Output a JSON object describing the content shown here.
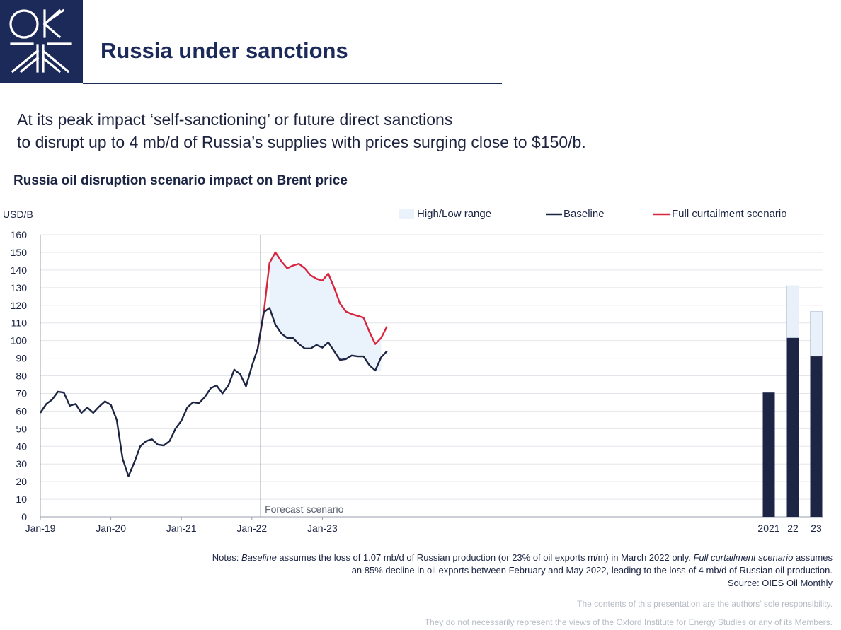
{
  "header": {
    "title": "Russia under sanctions",
    "logo_icon": "oies-logo-icon",
    "brand_color": "#1c2a5a"
  },
  "subtitle": {
    "line1": "At its peak impact ‘self-sanctioning’ or future direct sanctions",
    "line2": "to disrupt up to 4 mb/d of Russia’s supplies with prices surging close to $150/b."
  },
  "chart_data": {
    "type": "line",
    "title": "Russia oil disruption scenario impact on Brent price",
    "ylabel": "USD/B",
    "ylim": [
      0,
      160
    ],
    "yticks": [
      0,
      10,
      20,
      30,
      40,
      50,
      60,
      70,
      80,
      90,
      100,
      110,
      120,
      130,
      140,
      150,
      160
    ],
    "x_start": "Jan-19",
    "x_end": "Dec-23",
    "xticks": [
      "Jan-19",
      "Jan-20",
      "Jan-21",
      "Jan-22",
      "Jan-23"
    ],
    "grid": true,
    "legend_position": "top-right",
    "legend": [
      "High/Low range",
      "Baseline",
      "Full curtailment scenario"
    ],
    "colors": {
      "baseline": "#1c2544",
      "curtailment": "#d7263d",
      "range": "#eaf2fb",
      "annual_range": "#e8f1fa"
    },
    "annotation": "Forecast scenario",
    "annotation_at": "Feb-22",
    "series": [
      {
        "name": "Baseline",
        "start": "Jan-19",
        "values": [
          59,
          64,
          66.5,
          71,
          70.5,
          63,
          64,
          59,
          62,
          59,
          62.5,
          65.5,
          63.5,
          55,
          33,
          23,
          31,
          40,
          43,
          44,
          41,
          40.5,
          43,
          50,
          54.5,
          62,
          65,
          64.5,
          68,
          73,
          74.5,
          70,
          74.5,
          83.5,
          81,
          74,
          85.5,
          95.5,
          116,
          118.5,
          109,
          104,
          101.5,
          101.5,
          98,
          95.5,
          95.5,
          97.5,
          96,
          99,
          94,
          89,
          89.5,
          91.5,
          91,
          91,
          86,
          83,
          90.5,
          94
        ]
      },
      {
        "name": "Full curtailment scenario",
        "start": "Feb-22",
        "values": [
          95.5,
          115,
          144,
          150,
          145,
          141,
          142.5,
          143.5,
          141,
          137,
          135,
          134,
          138,
          130,
          121,
          116.5,
          115,
          114,
          113,
          105,
          98,
          101.5,
          108
        ]
      },
      {
        "name": "High/Low range",
        "start": "Apr-22",
        "low": [
          117,
          110,
          104,
          101,
          101,
          97.5,
          95.5,
          95.5,
          97,
          95.5,
          98.5,
          93.5,
          88.5,
          89,
          91,
          90.5,
          90.5,
          86,
          83,
          83
        ],
        "high": [
          144,
          150,
          145,
          141,
          142.5,
          143.5,
          141,
          137,
          135,
          134,
          138,
          130,
          121,
          116.5,
          115,
          114,
          113,
          105,
          98,
          101.5
        ]
      }
    ],
    "annual_bars": {
      "categories": [
        "2021",
        "22",
        "23"
      ],
      "baseline": [
        70.5,
        101.5,
        91
      ],
      "high": [
        70.5,
        131,
        116.5
      ]
    }
  },
  "notes": {
    "baseline_term": "Baseline",
    "baseline_text": " assumes the loss of 1.07 mb/d of Russian production (or 23% of oil exports m/m) in March 2022 only. ",
    "curtailment_term": "Full curtailment scenario",
    "curtailment_text": " assumes",
    "line2": "an 85% decline in oil exports between February and May 2022, leading to the loss of 4 mb/d of Russian oil production.",
    "source": "Source: OIES Oil Monthly"
  },
  "disclaimer": {
    "line1": "The contents of this presentation are the authors’ sole responsibility.",
    "line2": "They do not necessarily represent the views of the Oxford Institute for Energy Studies or any of its Members."
  }
}
